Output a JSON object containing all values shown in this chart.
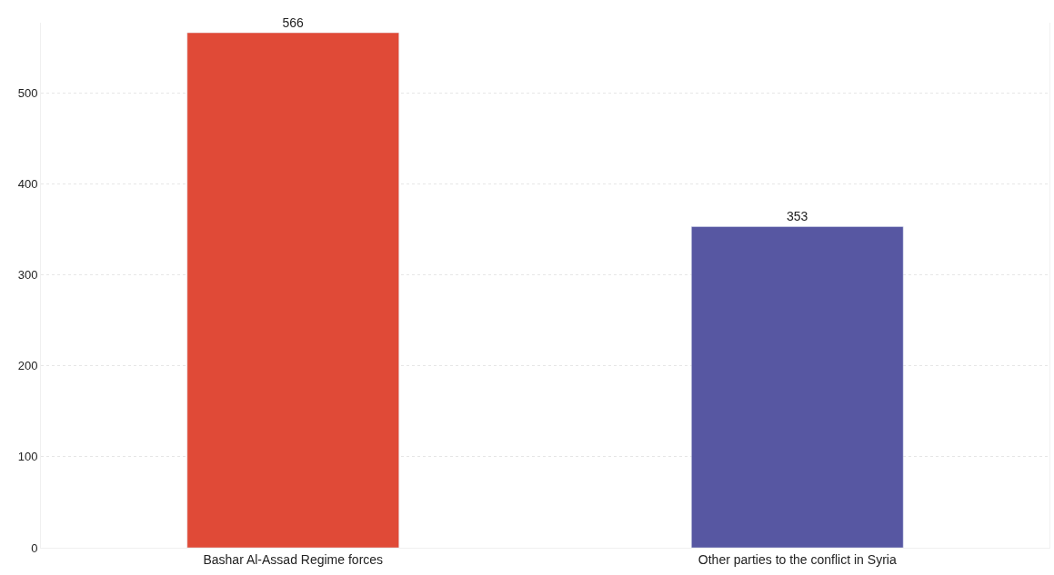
{
  "chart_data": {
    "type": "bar",
    "categories": [
      "Bashar Al-Assad Regime forces",
      "Other parties to the conflict in Syria"
    ],
    "values": [
      566,
      353
    ],
    "colors": [
      "#e04a37",
      "#5757a2"
    ],
    "ylim": [
      0,
      577
    ],
    "yticks": [
      0,
      100,
      200,
      300,
      400,
      500
    ],
    "grid": "y",
    "data_labels": true
  }
}
